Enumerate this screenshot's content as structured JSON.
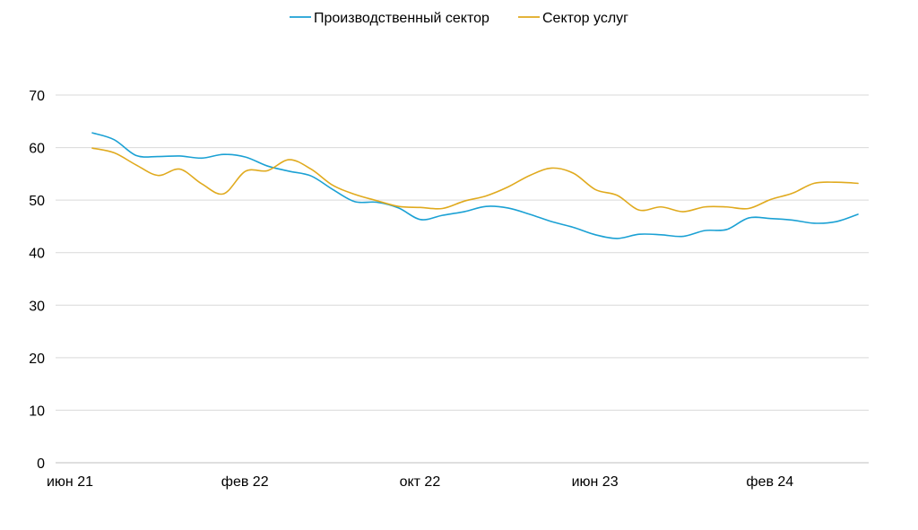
{
  "chart_data": {
    "type": "line",
    "title": "",
    "xlabel": "",
    "ylabel": "",
    "ylim": [
      0,
      70
    ],
    "y_ticks": [
      "0",
      "10",
      "20",
      "30",
      "40",
      "50",
      "60",
      "70"
    ],
    "x_ticks": [
      "июн 21",
      "фев 22",
      "окт 22",
      "июн 23",
      "фев 24"
    ],
    "x": [
      "2021-06",
      "2021-07",
      "2021-08",
      "2021-09",
      "2021-10",
      "2021-11",
      "2021-12",
      "2022-01",
      "2022-02",
      "2022-03",
      "2022-04",
      "2022-05",
      "2022-06",
      "2022-07",
      "2022-08",
      "2022-09",
      "2022-10",
      "2022-11",
      "2022-12",
      "2023-01",
      "2023-02",
      "2023-03",
      "2023-04",
      "2023-05",
      "2023-06",
      "2023-07",
      "2023-08",
      "2023-09",
      "2023-10",
      "2023-11",
      "2023-12",
      "2024-01",
      "2024-02",
      "2024-03",
      "2024-04",
      "2024-05"
    ],
    "grid": "horizontal",
    "legend": {
      "position": "top-center"
    },
    "series": [
      {
        "name": "Производственный сектор",
        "color": "#1ba1d4",
        "values": [
          62.8,
          61.5,
          58.5,
          58.3,
          58.4,
          58.0,
          58.7,
          58.2,
          56.5,
          55.5,
          54.6,
          52.0,
          49.7,
          49.6,
          48.5,
          46.3,
          47.1,
          47.8,
          48.8,
          48.5,
          47.3,
          45.9,
          44.8,
          43.4,
          42.7,
          43.5,
          43.4,
          43.1,
          44.2,
          44.4,
          46.6,
          46.5,
          46.2,
          45.6,
          45.9,
          47.3
        ]
      },
      {
        "name": "Сектор услуг",
        "color": "#e0aa1e",
        "values": [
          59.9,
          59.0,
          56.7,
          54.7,
          55.9,
          53.1,
          51.2,
          55.5,
          55.6,
          57.7,
          55.9,
          52.8,
          51.1,
          49.9,
          48.8,
          48.6,
          48.4,
          49.8,
          50.8,
          52.5,
          54.7,
          56.1,
          55.1,
          52.0,
          50.9,
          48.1,
          48.7,
          47.8,
          48.7,
          48.7,
          48.4,
          50.1,
          51.3,
          53.2,
          53.4,
          53.2
        ]
      }
    ]
  }
}
